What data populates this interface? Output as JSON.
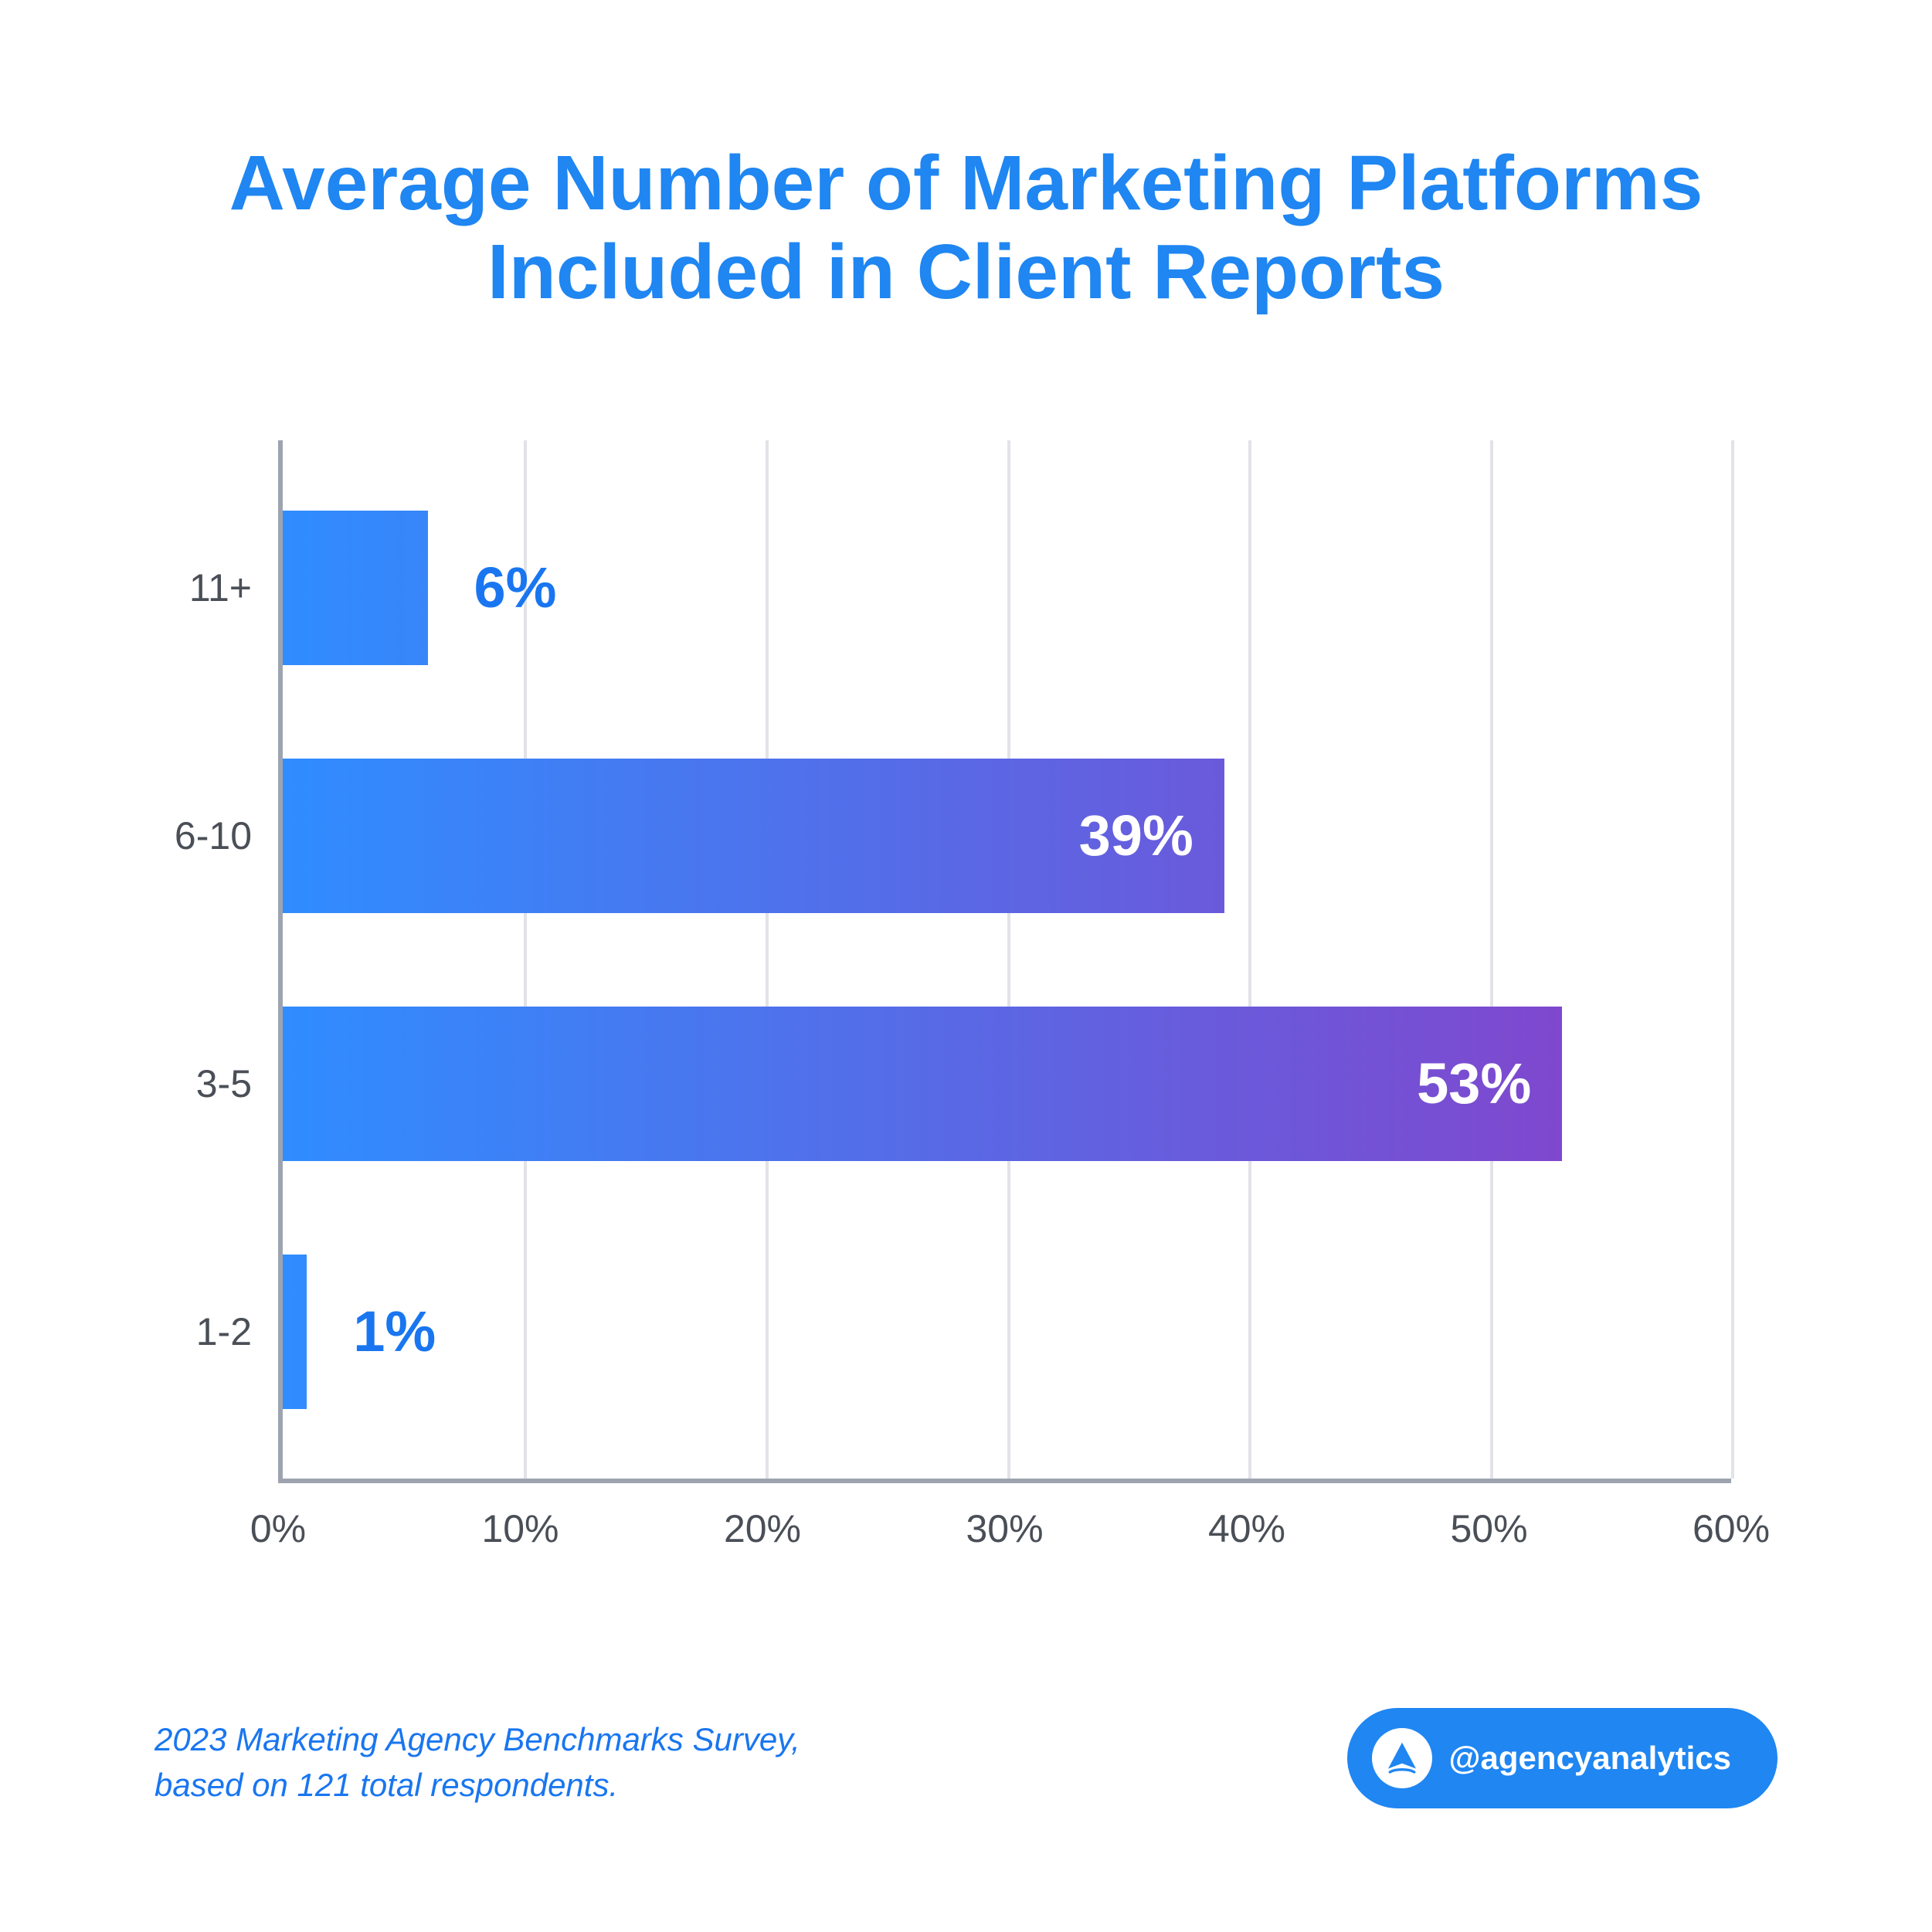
{
  "title": "Average Number of Marketing Platforms Included in Client Reports",
  "chart": {
    "type": "bar-horizontal",
    "xlim": [
      0,
      60
    ],
    "xtick_step": 10,
    "xticks": [
      "0%",
      "10%",
      "20%",
      "30%",
      "40%",
      "50%",
      "60%"
    ],
    "axis_color": "#9da4b0",
    "grid_color": "#e1e3e8",
    "ylabel_color": "#4a4f57",
    "ylabel_fontsize": 50,
    "xtick_color": "#4a4f57",
    "xtick_fontsize": 50,
    "bar_gradient_start": "#2f8dff",
    "bar_gradient_end": "#8a3fc7",
    "bar_value_inside_color": "#ffffff",
    "bar_value_outside_color": "#1976f0",
    "bar_value_fontsize": 74,
    "categories": [
      {
        "label": "11+",
        "value": 6,
        "display": "6%",
        "label_inside": false
      },
      {
        "label": "6-10",
        "value": 39,
        "display": "39%",
        "label_inside": true
      },
      {
        "label": "3-5",
        "value": 53,
        "display": "53%",
        "label_inside": true
      },
      {
        "label": "1-2",
        "value": 1,
        "display": "1%",
        "label_inside": false
      }
    ]
  },
  "title_style": {
    "color": "#1f86f2",
    "fontsize": 100
  },
  "source": {
    "line1": "2023 Marketing Agency Benchmarks Survey,",
    "line2": "based on 121 total respondents.",
    "color": "#1976f0",
    "fontsize": 42
  },
  "badge": {
    "handle": "@agencyanalytics",
    "bg_color": "#1f86f2",
    "text_color": "#ffffff",
    "fontsize": 42,
    "icon_color": "#1f86f2"
  },
  "background_color": "#ffffff"
}
